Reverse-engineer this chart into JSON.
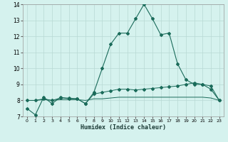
{
  "xlabel": "Humidex (Indice chaleur)",
  "x": [
    0,
    1,
    2,
    3,
    4,
    5,
    6,
    7,
    8,
    9,
    10,
    11,
    12,
    13,
    14,
    15,
    16,
    17,
    18,
    19,
    20,
    21,
    22,
    23
  ],
  "line1": [
    7.5,
    7.1,
    8.2,
    7.8,
    8.2,
    8.1,
    8.1,
    7.8,
    8.5,
    10.0,
    11.5,
    12.2,
    12.2,
    13.1,
    14.0,
    13.1,
    12.1,
    12.2,
    10.3,
    9.3,
    9.0,
    9.0,
    8.7,
    8.0
  ],
  "line2": [
    8.0,
    8.0,
    8.1,
    8.0,
    8.15,
    8.15,
    8.1,
    7.8,
    8.4,
    8.5,
    8.6,
    8.7,
    8.7,
    8.65,
    8.7,
    8.75,
    8.8,
    8.85,
    8.9,
    9.0,
    9.1,
    9.0,
    8.9,
    8.0
  ],
  "line3": [
    8.0,
    8.0,
    8.05,
    8.0,
    8.05,
    8.05,
    8.05,
    8.0,
    8.1,
    8.1,
    8.15,
    8.2,
    8.2,
    8.2,
    8.2,
    8.2,
    8.2,
    8.2,
    8.2,
    8.2,
    8.2,
    8.2,
    8.15,
    8.0
  ],
  "line_color": "#1a6b5a",
  "bg_color": "#d5f2ee",
  "grid_color": "#b8d9d4",
  "ylim": [
    7,
    14
  ],
  "xlim": [
    -0.5,
    23.5
  ],
  "yticks": [
    7,
    8,
    9,
    10,
    11,
    12,
    13,
    14
  ],
  "xticks": [
    0,
    1,
    2,
    3,
    4,
    5,
    6,
    7,
    8,
    9,
    10,
    11,
    12,
    13,
    14,
    15,
    16,
    17,
    18,
    19,
    20,
    21,
    22,
    23
  ],
  "marker1": "D",
  "marker2": "D",
  "markersize": 2.0
}
